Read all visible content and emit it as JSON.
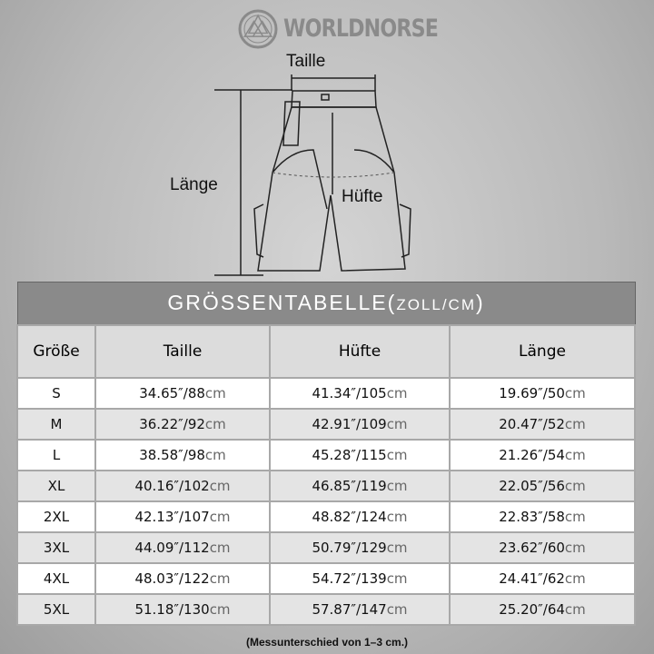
{
  "brand": {
    "name": "WORLDNORSE"
  },
  "diagram": {
    "waist_label": "Taille",
    "length_label": "Länge",
    "hip_label": "Hüfte"
  },
  "table": {
    "title": "GRÖSSENTABELLE(",
    "title_unit": "ZOLL/CM",
    "title_close": ")",
    "headers": [
      "Größe",
      "Taille",
      "Hüfte",
      "Länge"
    ],
    "rows": [
      {
        "size": "S",
        "waist_in": "34.65″/88",
        "hip_in": "41.34″/105",
        "length_in": "19.69″/50"
      },
      {
        "size": "M",
        "waist_in": "36.22″/92",
        "hip_in": "42.91″/109",
        "length_in": "20.47″/52"
      },
      {
        "size": "L",
        "waist_in": "38.58″/98",
        "hip_in": "45.28″/115",
        "length_in": "21.26″/54"
      },
      {
        "size": "XL",
        "waist_in": "40.16″/102",
        "hip_in": "46.85″/119",
        "length_in": "22.05″/56"
      },
      {
        "size": "2XL",
        "waist_in": "42.13″/107",
        "hip_in": "48.82″/124",
        "length_in": "22.83″/58"
      },
      {
        "size": "3XL",
        "waist_in": "44.09″/112",
        "hip_in": "50.79″/129",
        "length_in": "23.62″/60"
      },
      {
        "size": "4XL",
        "waist_in": "48.03″/122",
        "hip_in": "54.72″/139",
        "length_in": "24.41″/62"
      },
      {
        "size": "5XL",
        "waist_in": "51.18″/130",
        "hip_in": "57.87″/147",
        "length_in": "25.20″/64"
      }
    ],
    "unit": "cm"
  },
  "footnote": "(Messunterschied von 1–3 cm.)"
}
